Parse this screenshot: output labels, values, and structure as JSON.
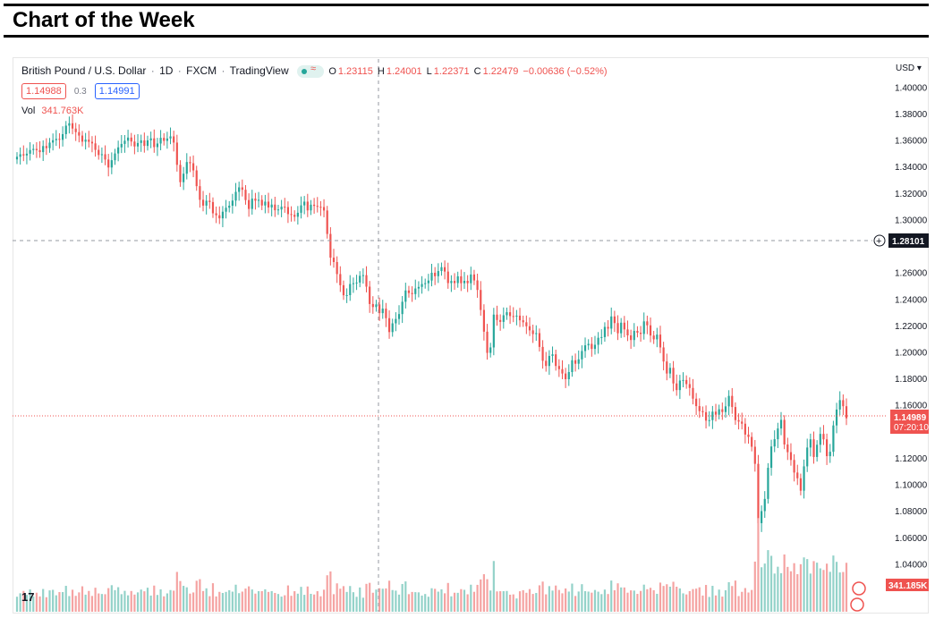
{
  "banner": {
    "title": "Chart of the Week"
  },
  "header": {
    "symbol": "British Pound / U.S. Dollar",
    "interval": "1D",
    "exchange": "FXCM",
    "source": "TradingView",
    "status_icons": [
      "market-open-dot-icon",
      "wave-icon"
    ]
  },
  "ohlc": {
    "open_label": "O",
    "open": "1.23115",
    "high_label": "H",
    "high": "1.24001",
    "low_label": "L",
    "low": "1.22371",
    "close_label": "C",
    "close": "1.22479",
    "change": "−0.00636 (−0.52%)"
  },
  "quote": {
    "sell": "1.14988",
    "spread": "0.3",
    "buy": "1.14991"
  },
  "volume": {
    "label": "Vol",
    "value": "341.763K"
  },
  "price_axis": {
    "currency": "USD",
    "ticks": [
      "1.40000",
      "1.38000",
      "1.36000",
      "1.34000",
      "1.32000",
      "1.30000",
      "1.26000",
      "1.24000",
      "1.22000",
      "1.20000",
      "1.18000",
      "1.16000",
      "1.12000",
      "1.10000",
      "1.08000",
      "1.06000",
      "1.04000"
    ]
  },
  "crosshair": {
    "price": "1.28101"
  },
  "last_price": {
    "price": "1.14989",
    "countdown": "07:20:10"
  },
  "volume_tag": "341.185K",
  "colors": {
    "up": "#26a69a",
    "down": "#ef5350",
    "vol_up": "#93d2c9",
    "vol_down": "#f5a3a2",
    "axis_tag": "#131722"
  },
  "chart_data": {
    "type": "candlestick",
    "series": [
      {
        "name": "British Pound / U.S. Dollar",
        "close": [
          1.3474,
          1.3493,
          1.3484,
          1.3497,
          1.3525,
          1.3533,
          1.3524,
          1.3509,
          1.3555,
          1.3539,
          1.3581,
          1.3599,
          1.3609,
          1.3602,
          1.3645,
          1.3709,
          1.3727,
          1.3687,
          1.366,
          1.3634,
          1.3588,
          1.3603,
          1.3587,
          1.3575,
          1.3526,
          1.3487,
          1.3493,
          1.3453,
          1.3393,
          1.3448,
          1.3499,
          1.3545,
          1.3571,
          1.3595,
          1.3619,
          1.3589,
          1.3552,
          1.3578,
          1.3598,
          1.3556,
          1.3598,
          1.3613,
          1.3547,
          1.3574,
          1.3617,
          1.3594,
          1.3612,
          1.3628,
          1.3581,
          1.3413,
          1.3282,
          1.3346,
          1.3434,
          1.3425,
          1.3371,
          1.3252,
          1.3149,
          1.3105,
          1.3142,
          1.3132,
          1.3047,
          1.3032,
          1.3009,
          1.3059,
          1.3089,
          1.3104,
          1.3143,
          1.3209,
          1.3243,
          1.3225,
          1.3147,
          1.308,
          1.3158,
          1.3142,
          1.3149,
          1.3106,
          1.3135,
          1.3091,
          1.3113,
          1.307,
          1.3076,
          1.3097,
          1.3094,
          1.3041,
          1.3035,
          1.3021,
          1.3051,
          1.3107,
          1.3135,
          1.3069,
          1.3112,
          1.3103,
          1.3096,
          1.3094,
          1.3068,
          1.2891,
          1.2712,
          1.2679,
          1.2588,
          1.2504,
          1.2428,
          1.2429,
          1.2513,
          1.2519,
          1.2524,
          1.2575,
          1.258,
          1.2493,
          1.2362,
          1.2339,
          1.2359,
          1.2293,
          1.2327,
          1.2255,
          1.215,
          1.2216,
          1.2249,
          1.2286,
          1.2379,
          1.2464,
          1.2445,
          1.2437,
          1.2479,
          1.2491,
          1.2513,
          1.2519,
          1.2539,
          1.2598,
          1.2572,
          1.2611,
          1.264,
          1.2607,
          1.252,
          1.2536,
          1.252,
          1.2571,
          1.2519,
          1.2537,
          1.2519,
          1.2585,
          1.254,
          1.2468,
          1.2317,
          1.2153,
          1.1993,
          1.2034,
          1.2282,
          1.2241,
          1.2227,
          1.2277,
          1.23,
          1.2271,
          1.2268,
          1.2274,
          1.2239,
          1.2224,
          1.2194,
          1.2163,
          1.2135,
          1.2142,
          1.2038,
          1.1933,
          1.1894,
          1.197,
          1.1982,
          1.1894,
          1.187,
          1.1837,
          1.1794,
          1.1848,
          1.1937,
          1.1911,
          1.1944,
          1.2007,
          1.205,
          1.2061,
          1.2023,
          1.2054,
          1.2107,
          1.2112,
          1.2189,
          1.2176,
          1.2268,
          1.2218,
          1.2141,
          1.2221,
          1.217,
          1.2125,
          1.209,
          1.2159,
          1.2145,
          1.2136,
          1.2231,
          1.2201,
          1.2124,
          1.2095,
          1.2131,
          1.2034,
          1.1928,
          1.1837,
          1.188,
          1.1762,
          1.1712,
          1.1784,
          1.1788,
          1.1757,
          1.1728,
          1.1647,
          1.1591,
          1.1553,
          1.1545,
          1.1481,
          1.1485,
          1.1549,
          1.1526,
          1.1567,
          1.1546,
          1.1589,
          1.1668,
          1.1584,
          1.1485,
          1.1474,
          1.1458,
          1.1376,
          1.1358,
          1.1284,
          1.1155,
          1.0707,
          1.0798,
          1.089,
          1.1125,
          1.1286,
          1.1341,
          1.1422,
          1.1487,
          1.1301,
          1.1243,
          1.1184,
          1.1089,
          1.1046,
          1.0952,
          1.1136,
          1.1278,
          1.134,
          1.1207,
          1.1299,
          1.1381,
          1.134,
          1.1213,
          1.1246,
          1.1445,
          1.1565,
          1.1636,
          1.159,
          1.1499
        ]
      }
    ],
    "y_range": [
      1.02,
      1.405
    ],
    "title": "British Pound / U.S. Dollar · 1D · FXCM",
    "xlabel": "",
    "ylabel": "",
    "grid": false,
    "legend": "none"
  }
}
